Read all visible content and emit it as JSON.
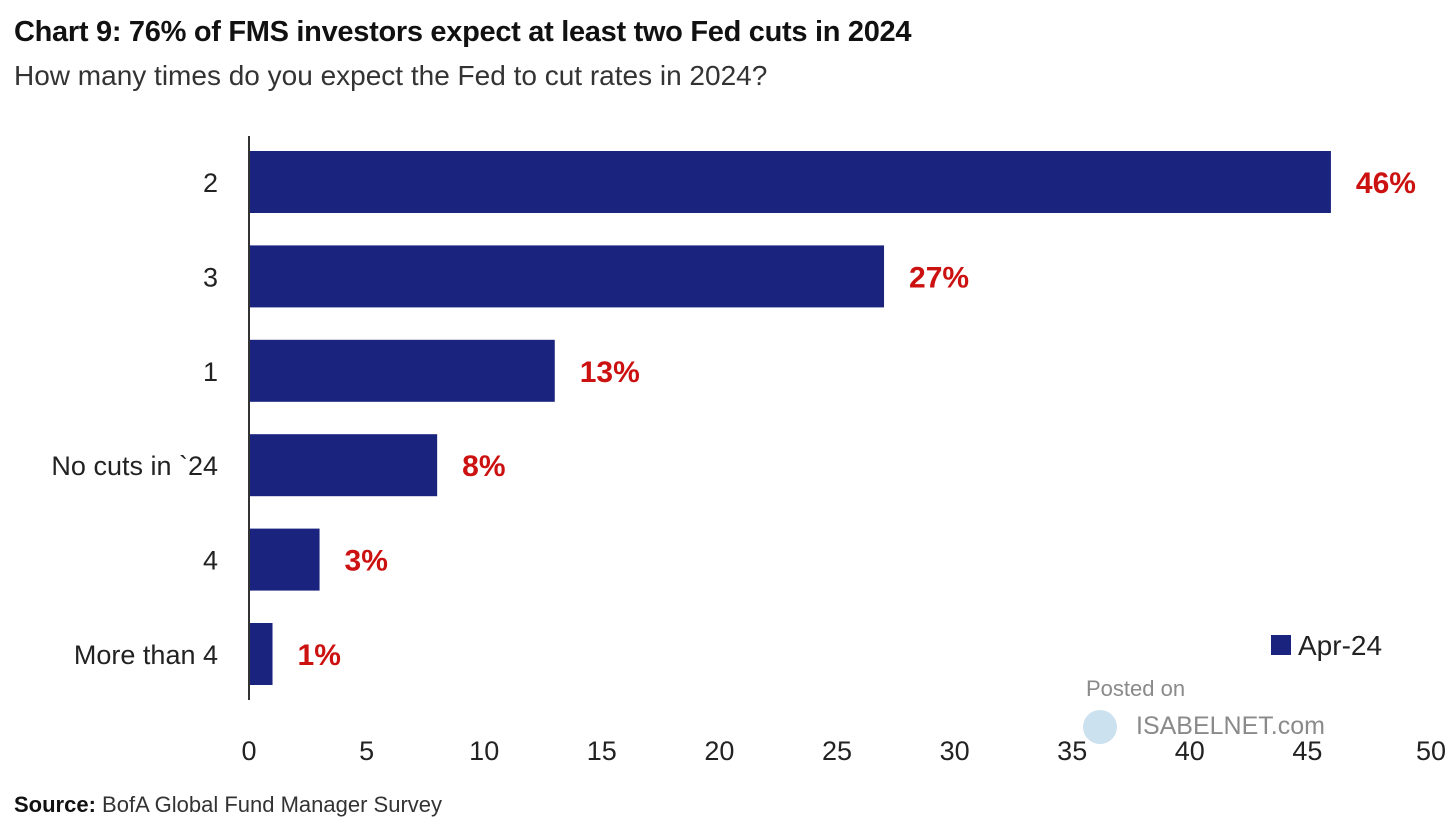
{
  "title": "Chart 9: 76% of FMS investors expect at least two Fed cuts in 2024",
  "subtitle": "How many times do you expect the Fed to cut rates in 2024?",
  "source": {
    "label": "Source:",
    "text": "BofA Global Fund Manager Survey"
  },
  "watermark": {
    "line1": "Posted on",
    "line2": "ISABELNET.com"
  },
  "colors": {
    "bar": "#1a237e",
    "value_label": "#cc1111",
    "axis": "#333333"
  },
  "chart_data": {
    "type": "bar",
    "orientation": "horizontal",
    "categories": [
      "2",
      "3",
      "1",
      "No cuts in `24",
      "4",
      "More than 4"
    ],
    "series": [
      {
        "name": "Apr-24",
        "values": [
          46,
          27,
          13,
          8,
          3,
          1
        ]
      }
    ],
    "data_labels": [
      "46%",
      "27%",
      "13%",
      "8%",
      "3%",
      "1%"
    ],
    "xlim": [
      0,
      50
    ],
    "xticks": [
      0,
      5,
      10,
      15,
      20,
      25,
      30,
      35,
      40,
      45,
      50
    ],
    "grid": false,
    "legend_position": "bottom-right"
  }
}
